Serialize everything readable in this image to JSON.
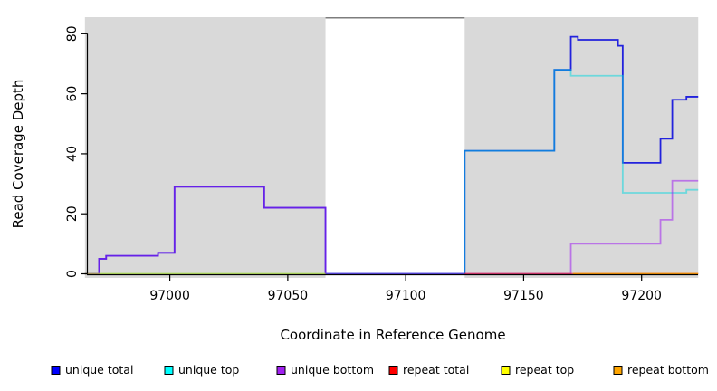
{
  "chart_data": {
    "type": "line",
    "subtype": "step-coverage-plot",
    "title": "",
    "xlabel": "Coordinate in Reference Genome",
    "ylabel": "Read Coverage Depth",
    "xlim": [
      96964,
      97224
    ],
    "ylim": [
      0,
      85.5
    ],
    "x_ticks": [
      97000,
      97050,
      97100,
      97150,
      97200
    ],
    "y_ticks": [
      0,
      20,
      40,
      60,
      80
    ],
    "grid": false,
    "legend_position": "bottom",
    "background_shading": {
      "shaded_color": "#d9d9d9",
      "regions": [
        {
          "x0": 96964,
          "x1": 97066
        },
        {
          "x0": 97125,
          "x1": 97224
        }
      ],
      "gap": {
        "x0": 97066,
        "x1": 97125,
        "top_border_color": "#7d7d7d"
      }
    },
    "series": [
      {
        "name": "unique total",
        "color": "#2222dd",
        "opacity": 1.0,
        "steps": [
          [
            96964,
            0
          ],
          [
            96970,
            5
          ],
          [
            96973,
            6
          ],
          [
            96995,
            7
          ],
          [
            97002,
            29
          ],
          [
            97040,
            22
          ],
          [
            97066,
            0
          ],
          [
            97125,
            41
          ],
          [
            97163,
            68
          ],
          [
            97170,
            79
          ],
          [
            97173,
            78
          ],
          [
            97190,
            76
          ],
          [
            97192,
            37
          ],
          [
            97208,
            45
          ],
          [
            97213,
            58
          ],
          [
            97219,
            59
          ]
        ],
        "x_end": 97224
      },
      {
        "name": "unique top",
        "color": "#00d8e0",
        "opacity": 0.5,
        "steps": [
          [
            96964,
            0
          ],
          [
            97125,
            41
          ],
          [
            97163,
            68
          ],
          [
            97170,
            66
          ],
          [
            97192,
            27
          ],
          [
            97219,
            28
          ]
        ],
        "x_end": 97224
      },
      {
        "name": "unique bottom",
        "color": "#a020f0",
        "opacity": 0.55,
        "steps": [
          [
            96964,
            0
          ],
          [
            96970,
            5
          ],
          [
            96973,
            6
          ],
          [
            96995,
            7
          ],
          [
            97002,
            29
          ],
          [
            97040,
            22
          ],
          [
            97066,
            0
          ],
          [
            97170,
            10
          ],
          [
            97208,
            18
          ],
          [
            97213,
            31
          ]
        ],
        "x_end": 97224
      },
      {
        "name": "repeat total",
        "color": "#ff0000",
        "opacity": 0.5,
        "steps": [
          [
            97125,
            0
          ]
        ],
        "x_end": 97224
      },
      {
        "name": "repeat top",
        "color": "#ffee00",
        "opacity": 0.55,
        "steps": [
          [
            96964,
            0
          ]
        ],
        "x_end": 97066
      },
      {
        "name": "repeat bottom",
        "color": "#ff9900",
        "opacity": 0.95,
        "steps": [
          [
            97171,
            0
          ]
        ],
        "x_end": 97224
      }
    ],
    "legend": [
      {
        "label": "unique total",
        "color": "#0000ff"
      },
      {
        "label": "unique top",
        "color": "#00ffff"
      },
      {
        "label": "unique bottom",
        "color": "#a020f0"
      },
      {
        "label": "repeat total",
        "color": "#ff0000"
      },
      {
        "label": "repeat top",
        "color": "#ffff00"
      },
      {
        "label": "repeat bottom",
        "color": "#ffa500"
      }
    ]
  }
}
